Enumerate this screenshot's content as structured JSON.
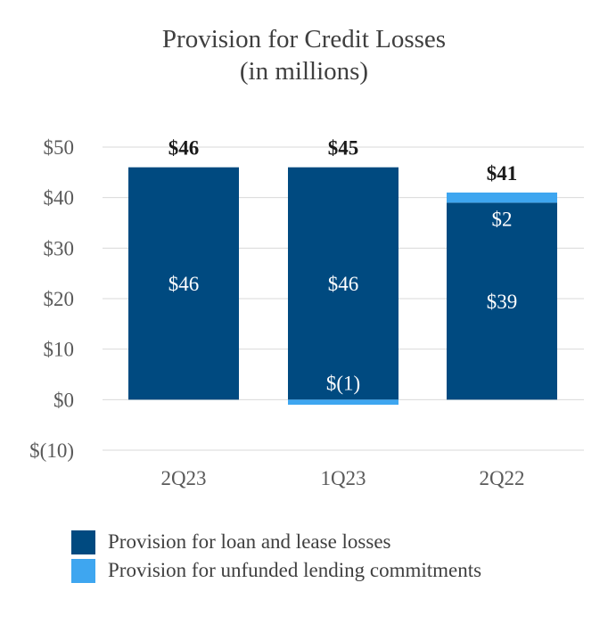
{
  "chart_data": {
    "type": "bar",
    "stacked": true,
    "title": "Provision for Credit Losses",
    "subtitle": "(in millions)",
    "categories": [
      "2Q23",
      "1Q23",
      "2Q22"
    ],
    "series": [
      {
        "name": "Provision for loan and lease losses",
        "values": [
          46,
          46,
          39
        ],
        "labels": [
          "$46",
          "$46",
          "$39"
        ],
        "color": "#004a80"
      },
      {
        "name": "Provision for unfunded lending commitments",
        "values": [
          0,
          -1,
          2
        ],
        "labels": [
          "",
          "$(1)",
          "$2"
        ],
        "color": "#3ea6f0"
      }
    ],
    "totals": [
      46,
      45,
      41
    ],
    "total_labels": [
      "$46",
      "$45",
      "$41"
    ],
    "ylim": [
      -10,
      50
    ],
    "yticks": [
      50,
      40,
      30,
      20,
      10,
      0,
      -10
    ],
    "ytick_labels": [
      "$50",
      "$40",
      "$30",
      "$20",
      "$10",
      "$0",
      "$(10)"
    ],
    "grid": true,
    "legend_position": "bottom-left"
  }
}
